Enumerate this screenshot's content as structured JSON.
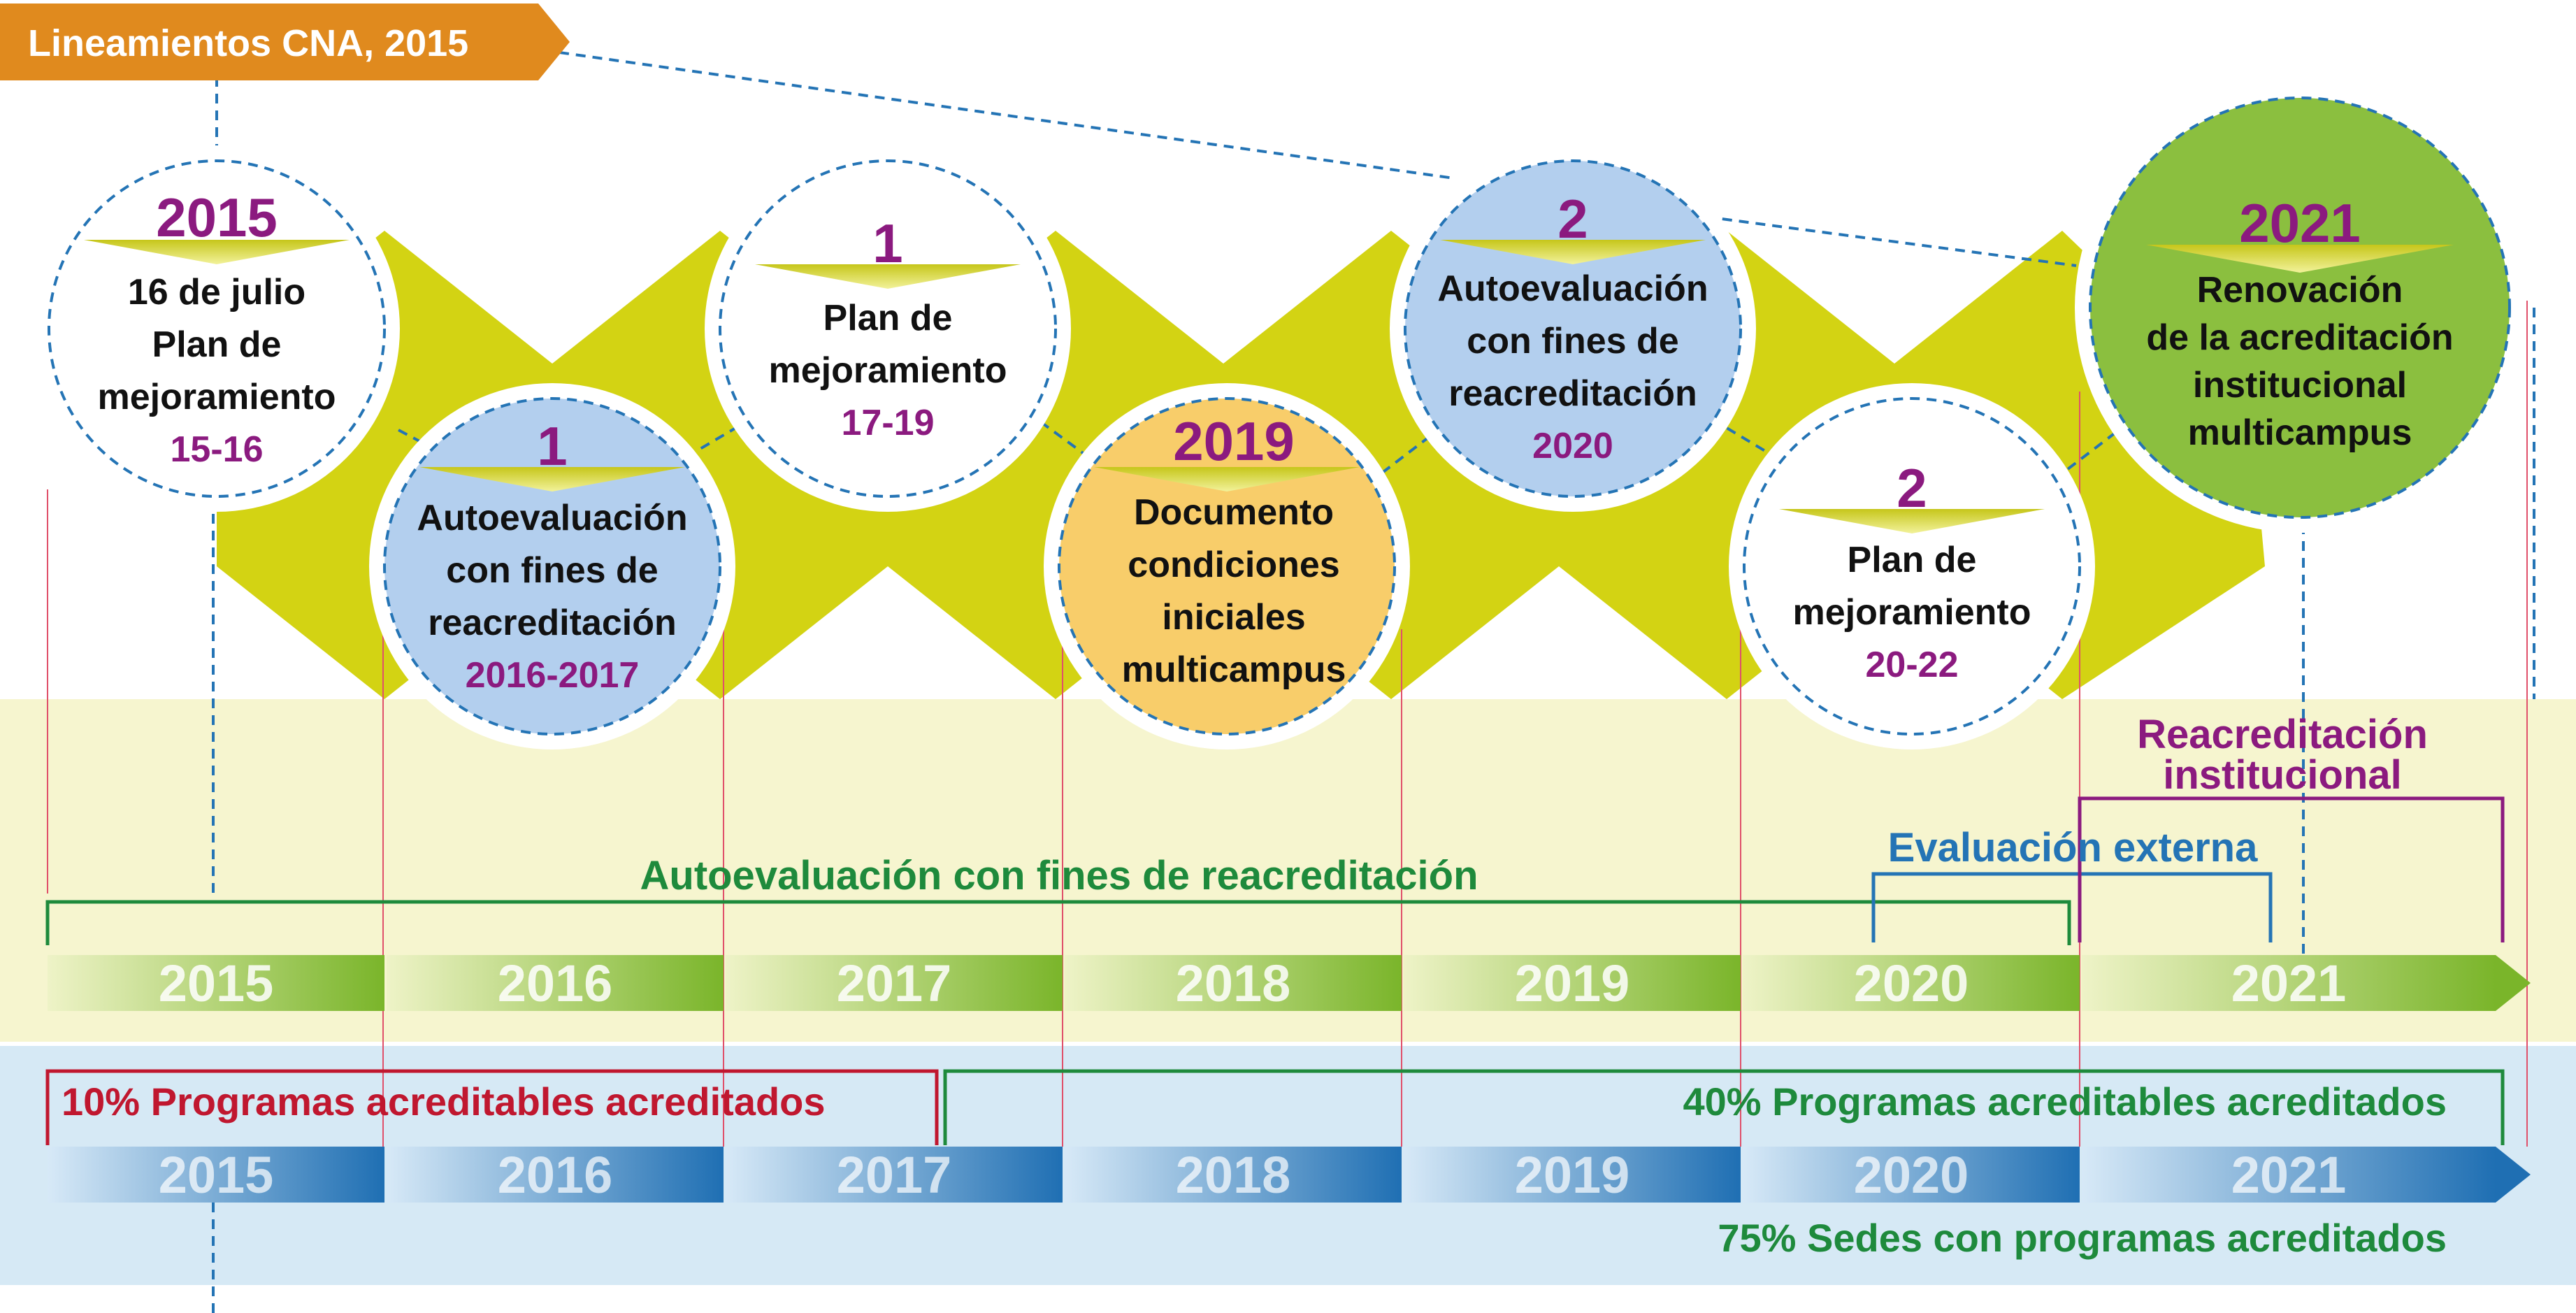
{
  "header": {
    "label": "Lineamientos CNA, 2015"
  },
  "circles": [
    {
      "year": "2015",
      "lines": [
        "16 de julio",
        "Plan de",
        "mejoramiento"
      ],
      "range": "15-16"
    },
    {
      "year": "1",
      "lines": [
        "Autoevaluación",
        "con fines de",
        "reacreditación"
      ],
      "range": "2016-2017"
    },
    {
      "year": "1",
      "lines": [
        "Plan de",
        "mejoramiento"
      ],
      "range": "17-19"
    },
    {
      "year": "2019",
      "lines": [
        "Documento",
        "condiciones",
        "iniciales",
        "multicampus"
      ],
      "range": ""
    },
    {
      "year": "2",
      "lines": [
        "Autoevaluación",
        "con fines de",
        "reacreditación"
      ],
      "range": "2020"
    },
    {
      "year": "2",
      "lines": [
        "Plan de",
        "mejoramiento"
      ],
      "range": "20-22"
    },
    {
      "year": "2021",
      "lines": [
        "Renovación",
        "de la acreditación",
        "institucional",
        "multicampus"
      ],
      "range": ""
    }
  ],
  "labels": {
    "reacreditacion_institucional": [
      "Reacreditación",
      "institucional"
    ],
    "evaluacion_externa": "Evaluación externa",
    "autoevaluacion": "Autoevaluación con fines de reacreditación",
    "programas_10": "10% Programas acreditables acreditados",
    "programas_40": "40% Programas acreditables acreditados",
    "sedes_75": "75% Sedes con programas acreditados"
  },
  "timeline_years": [
    "2015",
    "2016",
    "2017",
    "2018",
    "2019",
    "2020",
    "2021"
  ],
  "colors": {
    "orange": "#e08a1e",
    "purple": "#8b1a7f",
    "green_text": "#1e8a3c",
    "blue_text": "#2474b5",
    "red_text": "#c0172f",
    "yellow_green": "#d3d313",
    "circle_blue": "#b3cfee",
    "circle_orange": "#f8cd6a",
    "circle_green": "#8bbf3f",
    "band_yellow": "#f6f5cf",
    "band_blue": "#d6e9f5"
  }
}
